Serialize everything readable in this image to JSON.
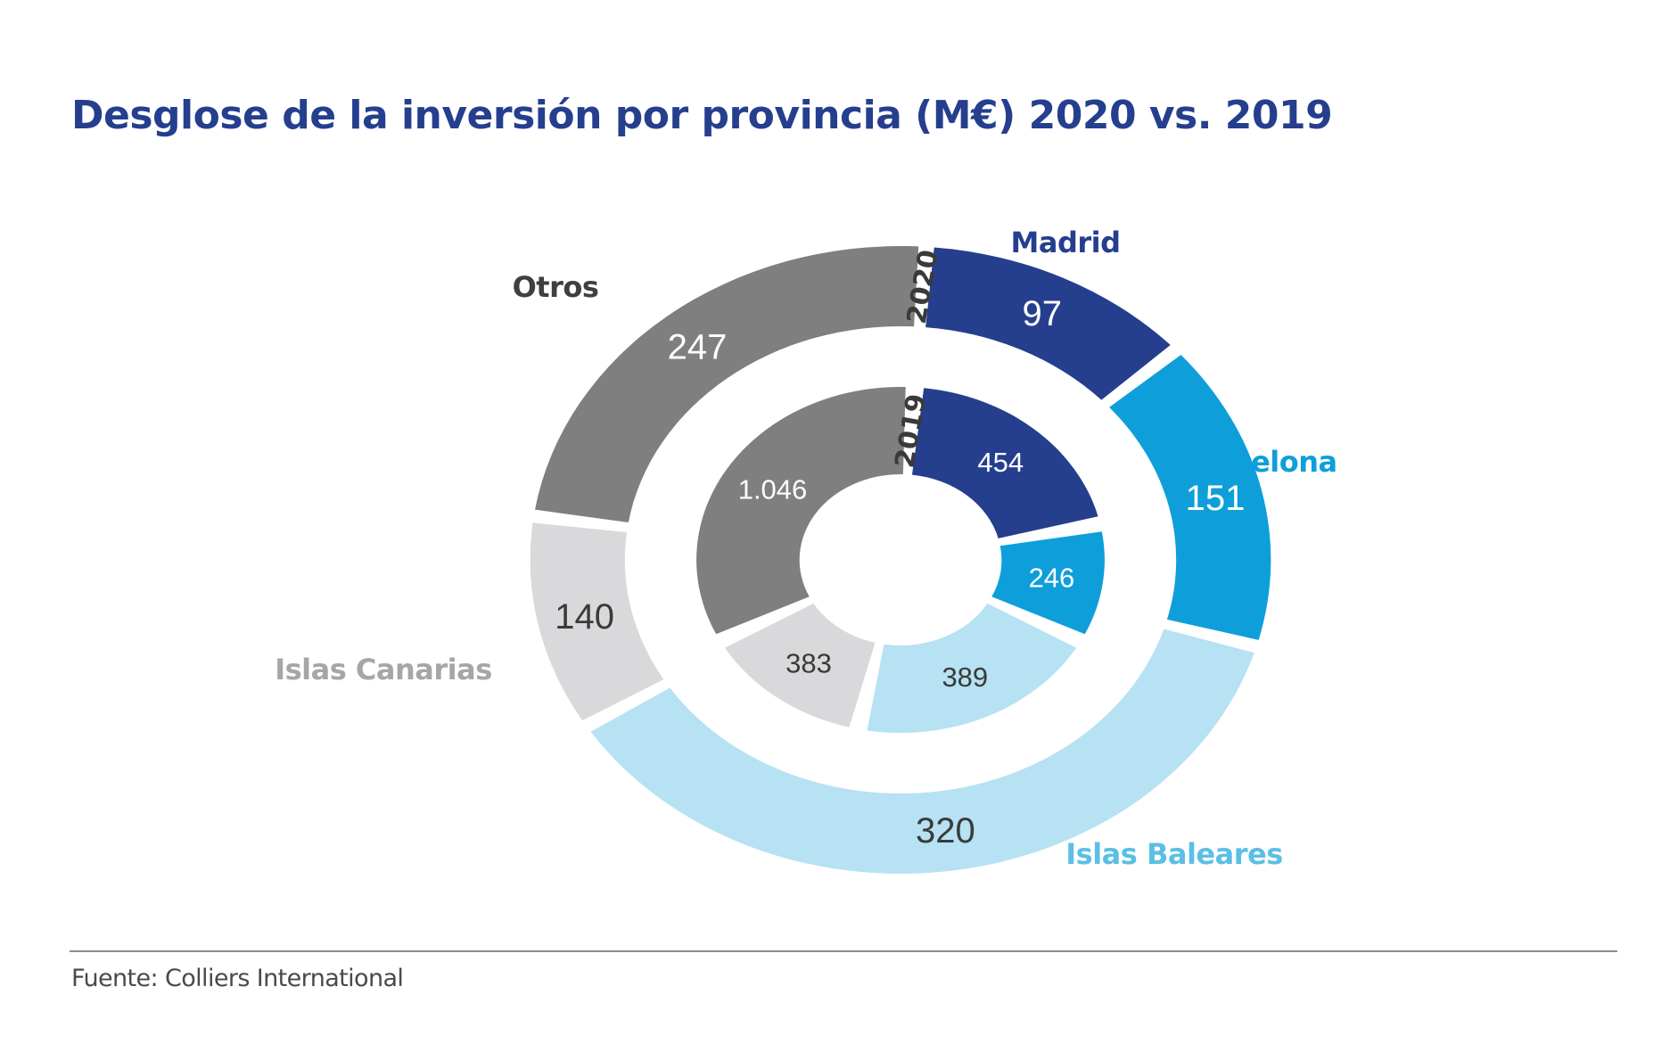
{
  "title": "Desglose de la inversión por provincia (M€) 2020 vs. 2019",
  "source": "Fuente: Colliers International",
  "chart_data": {
    "type": "pie",
    "variant": "nested-donut",
    "title": "Desglose de la inversión por provincia (M€) 2020 vs. 2019",
    "unit": "M€",
    "categories": [
      "Madrid",
      "Barcelona",
      "Islas Baleares",
      "Islas Canarias",
      "Otros"
    ],
    "colors": {
      "Madrid": "#253f8e",
      "Barcelona": "#0e9fda",
      "Islas Baleares": "#b6e2f3",
      "Islas Canarias": "#d9d9db",
      "Otros": "#7f7f7f"
    },
    "label_colors": {
      "Madrid": "#253f8e",
      "Barcelona": "#0e9fda",
      "Islas Baleares": "#5bbfe5",
      "Islas Canarias": "#a6a6a6",
      "Otros": "#3f3f3f"
    },
    "series": [
      {
        "name": "2020",
        "ring": "outer",
        "values": [
          97,
          151,
          320,
          140,
          247
        ],
        "value_labels": [
          "97",
          "151",
          "320",
          "140",
          "247"
        ]
      },
      {
        "name": "2019",
        "ring": "inner",
        "values": [
          454,
          246,
          389,
          383,
          1046
        ],
        "value_labels": [
          "454",
          "246",
          "389",
          "383",
          "1.046"
        ]
      }
    ],
    "legend": "category labels placed around the outer ring"
  }
}
